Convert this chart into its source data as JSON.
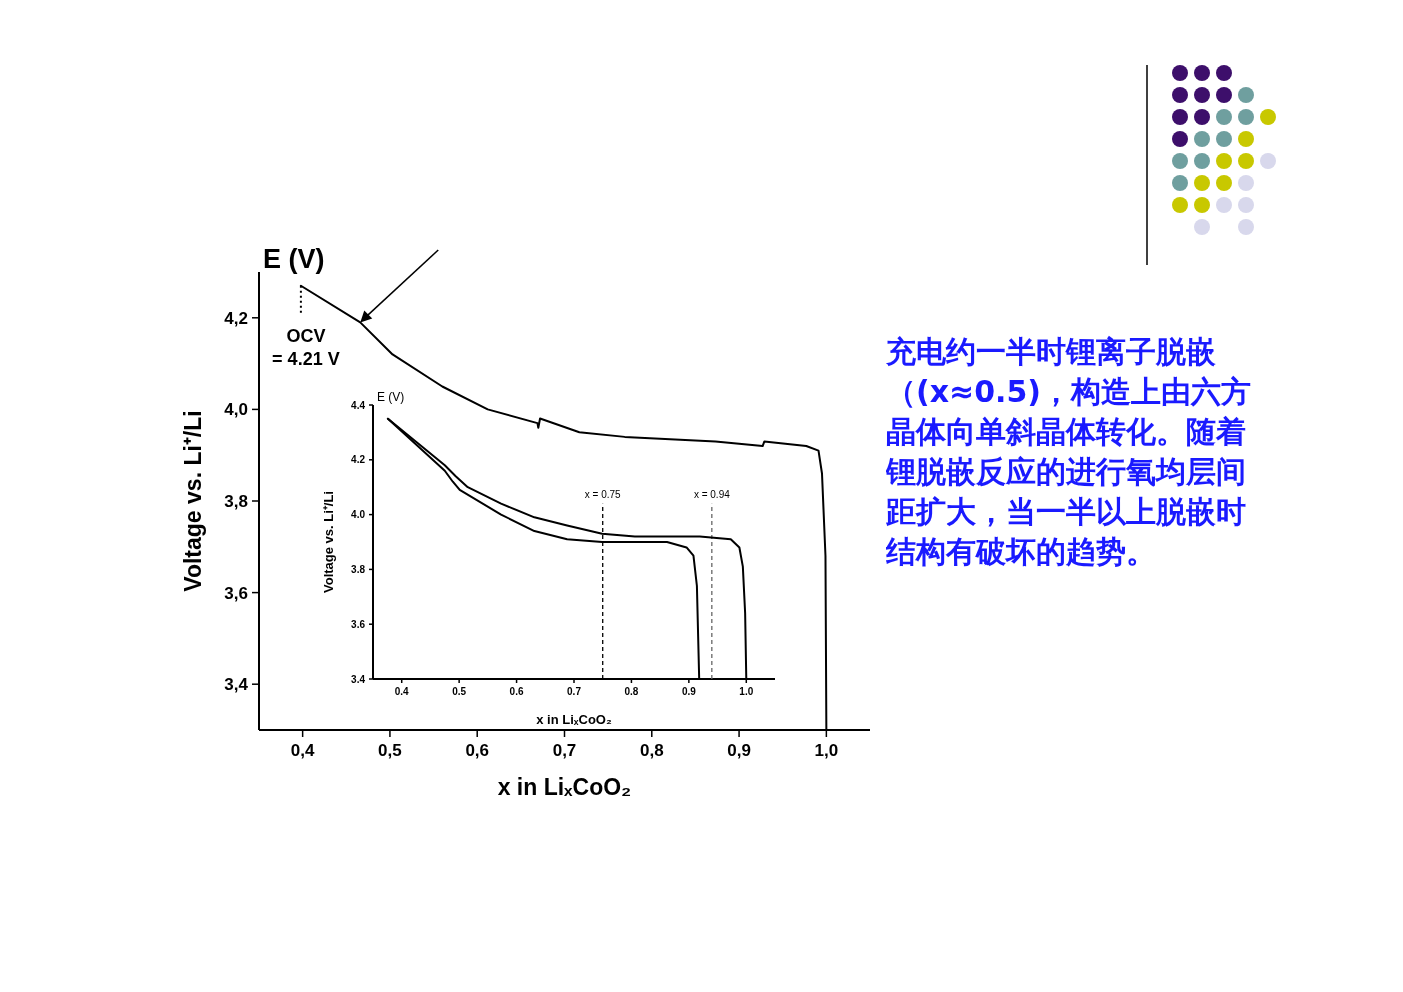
{
  "chart_data": [
    {
      "type": "line",
      "xlabel": "x in LiₓCoO₂",
      "ylabel": "Voltage vs. Li⁺/Li",
      "annotations": [
        "E (V)",
        {
          "text": "OCV = 4.21 V",
          "x": 0.398,
          "y": 4.27
        }
      ],
      "xlim": [
        0.35,
        1.05
      ],
      "ylim": [
        3.3,
        4.3
      ],
      "xticks": [
        {
          "value": 0.4,
          "label": "0,4"
        },
        {
          "value": 0.5,
          "label": "0,5"
        },
        {
          "value": 0.6,
          "label": "0,6"
        },
        {
          "value": 0.7,
          "label": "0,7"
        },
        {
          "value": 0.8,
          "label": "0,8"
        },
        {
          "value": 0.9,
          "label": "0,9"
        },
        {
          "value": 1.0,
          "label": "1,0"
        }
      ],
      "yticks": [
        {
          "value": 3.4,
          "label": "3,4"
        },
        {
          "value": 3.6,
          "label": "3,6"
        },
        {
          "value": 3.8,
          "label": "3,8"
        },
        {
          "value": 4.0,
          "label": "4,0"
        },
        {
          "value": 4.2,
          "label": "4,2"
        }
      ],
      "series": [
        {
          "color": "#000000",
          "x": [
            0.398,
            0.466,
            0.503,
            0.56,
            0.612,
            0.669,
            0.67,
            0.672,
            0.717,
            0.769,
            0.873,
            0.927,
            0.929,
            0.977,
            0.991,
            0.995,
            0.999,
            1.0
          ],
          "values": [
            4.27,
            4.19,
            4.12,
            4.05,
            4.0,
            3.97,
            3.96,
            3.98,
            3.95,
            3.94,
            3.93,
            3.92,
            3.93,
            3.92,
            3.91,
            3.86,
            3.68,
            3.3
          ]
        }
      ]
    },
    {
      "type": "line",
      "xlabel": "x in LiₓCoO₂",
      "ylabel": "Voltage vs. Li⁺/Li",
      "annotations": [
        "E (V)"
      ],
      "xlim": [
        0.35,
        1.05
      ],
      "ylim": [
        3.4,
        4.4
      ],
      "xticks": [
        0.4,
        0.5,
        0.6,
        0.7,
        0.8,
        0.9,
        {
          "value": 1.0,
          "label": "1.0"
        }
      ],
      "yticks": [
        3.4,
        3.6,
        3.8,
        {
          "value": 4.0,
          "label": "4.0"
        },
        4.2,
        4.4
      ],
      "ref_lines": [
        {
          "axis": "x",
          "value": 0.75,
          "label": "x = 0.75",
          "line_style": "dashed",
          "color": "#000000"
        },
        {
          "axis": "x",
          "value": 0.94,
          "label": "x = 0.94",
          "line_style": "dashed",
          "color": "#666666"
        }
      ],
      "series": [
        {
          "color": "#000000",
          "x": [
            0.376,
            0.475,
            0.494,
            0.515,
            0.573,
            0.631,
            0.688,
            0.749,
            0.806,
            0.919,
            0.973,
            0.988,
            0.994,
            0.998,
            1.0
          ],
          "values": [
            4.35,
            4.18,
            4.14,
            4.1,
            4.04,
            3.99,
            3.96,
            3.93,
            3.92,
            3.92,
            3.91,
            3.88,
            3.81,
            3.64,
            3.4
          ]
        },
        {
          "color": "#000000",
          "x": [
            0.376,
            0.475,
            0.489,
            0.501,
            0.573,
            0.631,
            0.688,
            0.749,
            0.862,
            0.896,
            0.908,
            0.914,
            0.918
          ],
          "values": [
            4.35,
            4.16,
            4.12,
            4.09,
            4.0,
            3.94,
            3.91,
            3.9,
            3.9,
            3.88,
            3.85,
            3.74,
            3.4
          ]
        }
      ]
    },
    {
      "type": "other",
      "annotations": [
        "充电约一半时锂离子脱嵌（(x≈0.5)，构造上由六方晶体向单斜晶体转化。随着锂脱嵌反应的进行氧均层间距扩大，当一半以上脱嵌时结构有破坏的趋势。"
      ]
    }
  ]
}
